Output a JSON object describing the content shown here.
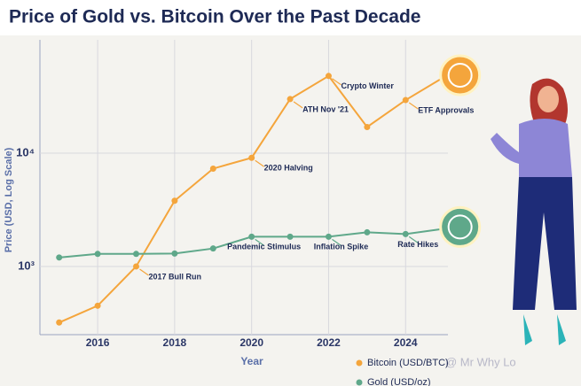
{
  "chart_data": {
    "type": "line",
    "title": "Price of Gold vs. Bitcoin Over the Past Decade",
    "x_label": "Year",
    "y_label": "Price (USD, Log Scale)",
    "log_y": true,
    "grid": true,
    "legend": "bottom-right",
    "xlim": [
      2014.5,
      2025.1
    ],
    "xticks": [
      2016,
      2018,
      2020,
      2022,
      2024
    ],
    "ylim": [
      250,
      100000
    ],
    "yticks": [
      {
        "value": 1000,
        "label": "10³"
      },
      {
        "value": 10000,
        "label": "10⁴"
      }
    ],
    "x": [
      2015,
      2016,
      2017,
      2018,
      2019,
      2020,
      2021,
      2022,
      2023,
      2024,
      2025
    ],
    "series": [
      {
        "name": "Bitcoin (USD/BTC)",
        "color": "#f4a53c",
        "values": [
          320,
          450,
          1000,
          3800,
          7300,
          9100,
          30000,
          48000,
          17000,
          29400,
          47000
        ],
        "annotations": [
          {
            "x": 2017,
            "text": "2017 Bull Run"
          },
          {
            "x": 2020,
            "text": "2020 Halving"
          },
          {
            "x": 2021,
            "text": "ATH Nov '21"
          },
          {
            "x": 2022,
            "text": "Crypto Winter"
          },
          {
            "x": 2024,
            "text": "ETF Approvals"
          }
        ]
      },
      {
        "name": "Gold (USD/oz)",
        "color": "#5fa88a",
        "values": [
          1200,
          1290,
          1290,
          1300,
          1440,
          1830,
          1830,
          1830,
          2000,
          1930,
          2150
        ],
        "annotations": [
          {
            "x": 2020,
            "text": "Pandemic Stimulus"
          },
          {
            "x": 2022,
            "text": "Inflation Spike"
          },
          {
            "x": 2024,
            "text": "Rate Hikes"
          }
        ]
      }
    ],
    "watermark": "@ Mr Why Lo"
  }
}
